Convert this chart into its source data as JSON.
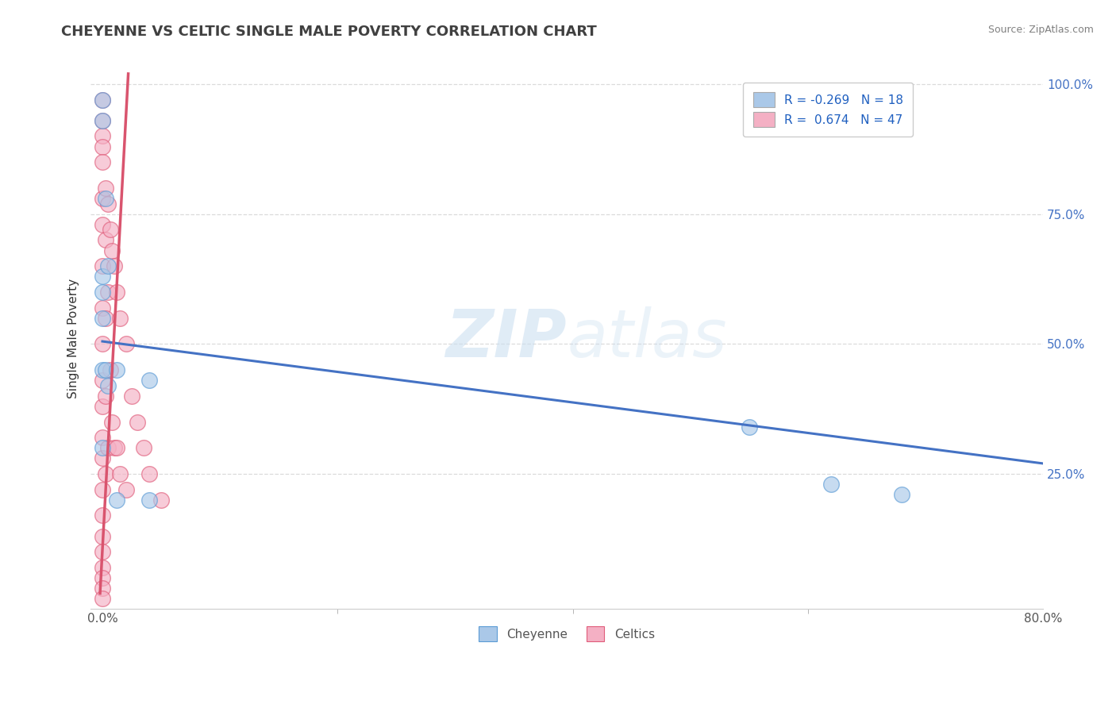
{
  "title": "CHEYENNE VS CELTIC SINGLE MALE POVERTY CORRELATION CHART",
  "source": "Source: ZipAtlas.com",
  "ylabel": "Single Male Poverty",
  "watermark_zip": "ZIP",
  "watermark_atlas": "atlas",
  "cheyenne_color": "#aac8e8",
  "cheyenne_edge_color": "#5b9bd5",
  "celtics_color": "#f4b0c4",
  "celtics_edge_color": "#e05c7a",
  "cheyenne_line_color": "#4472c4",
  "celtics_line_color": "#d9546e",
  "title_color": "#404040",
  "legend_label_color": "#2060c0",
  "legend_n_color": "#2060c0",
  "ytick_color": "#4472c4",
  "source_color": "#808080",
  "grid_color": "#d8d8d8",
  "legend_cheyenne_R": "R = -0.269",
  "legend_cheyenne_N": "N = 18",
  "legend_celtics_R": "R =  0.674",
  "legend_celtics_N": "N = 47",
  "cheyenne_x": [
    0.0,
    0.0,
    0.0,
    0.0,
    0.0,
    0.0,
    0.0,
    0.003,
    0.003,
    0.005,
    0.005,
    0.012,
    0.012,
    0.04,
    0.04,
    0.55,
    0.62,
    0.68
  ],
  "cheyenne_y": [
    0.97,
    0.93,
    0.63,
    0.6,
    0.55,
    0.45,
    0.3,
    0.78,
    0.45,
    0.65,
    0.42,
    0.2,
    0.45,
    0.43,
    0.2,
    0.34,
    0.23,
    0.21
  ],
  "celtics_x": [
    0.0,
    0.0,
    0.0,
    0.0,
    0.0,
    0.0,
    0.0,
    0.0,
    0.0,
    0.0,
    0.0,
    0.0,
    0.0,
    0.0,
    0.0,
    0.0,
    0.0,
    0.0,
    0.0,
    0.0,
    0.0,
    0.0,
    0.003,
    0.003,
    0.003,
    0.003,
    0.003,
    0.005,
    0.005,
    0.005,
    0.007,
    0.007,
    0.008,
    0.008,
    0.01,
    0.01,
    0.012,
    0.012,
    0.015,
    0.015,
    0.02,
    0.02,
    0.025,
    0.03,
    0.035,
    0.04,
    0.05
  ],
  "celtics_y": [
    0.97,
    0.93,
    0.9,
    0.88,
    0.85,
    0.78,
    0.73,
    0.65,
    0.57,
    0.5,
    0.43,
    0.38,
    0.32,
    0.28,
    0.22,
    0.17,
    0.13,
    0.1,
    0.07,
    0.05,
    0.03,
    0.01,
    0.8,
    0.7,
    0.55,
    0.4,
    0.25,
    0.77,
    0.6,
    0.3,
    0.72,
    0.45,
    0.68,
    0.35,
    0.65,
    0.3,
    0.6,
    0.3,
    0.55,
    0.25,
    0.5,
    0.22,
    0.4,
    0.35,
    0.3,
    0.25,
    0.2
  ],
  "cheyenne_line_x": [
    0.0,
    0.8
  ],
  "cheyenne_line_y": [
    0.505,
    0.27
  ],
  "celtics_line_x": [
    -0.002,
    0.022
  ],
  "celtics_line_y": [
    0.02,
    1.02
  ],
  "xlim": [
    -0.01,
    0.8
  ],
  "ylim": [
    -0.01,
    1.03
  ],
  "xticks": [
    0.0,
    0.8
  ],
  "xtick_labels": [
    "0.0%",
    "80.0%"
  ],
  "yticks": [
    0.25,
    0.5,
    0.75,
    1.0
  ],
  "ytick_labels": [
    "25.0%",
    "50.0%",
    "75.0%",
    "100.0%"
  ],
  "background_color": "#ffffff"
}
